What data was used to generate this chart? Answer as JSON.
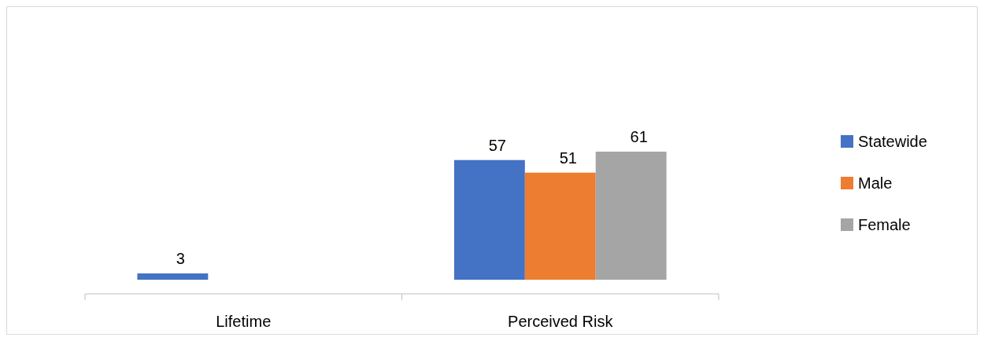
{
  "chart_data": {
    "type": "bar",
    "categories": [
      "Lifetime",
      "Perceived Risk"
    ],
    "series": [
      {
        "name": "Statewide",
        "color": "#4472c4",
        "values": [
          3,
          57
        ]
      },
      {
        "name": "Male",
        "color": "#ed7d31",
        "values": [
          null,
          51
        ]
      },
      {
        "name": "Female",
        "color": "#a5a5a5",
        "values": [
          null,
          61
        ]
      }
    ],
    "data_labels": true,
    "legend": "right"
  }
}
